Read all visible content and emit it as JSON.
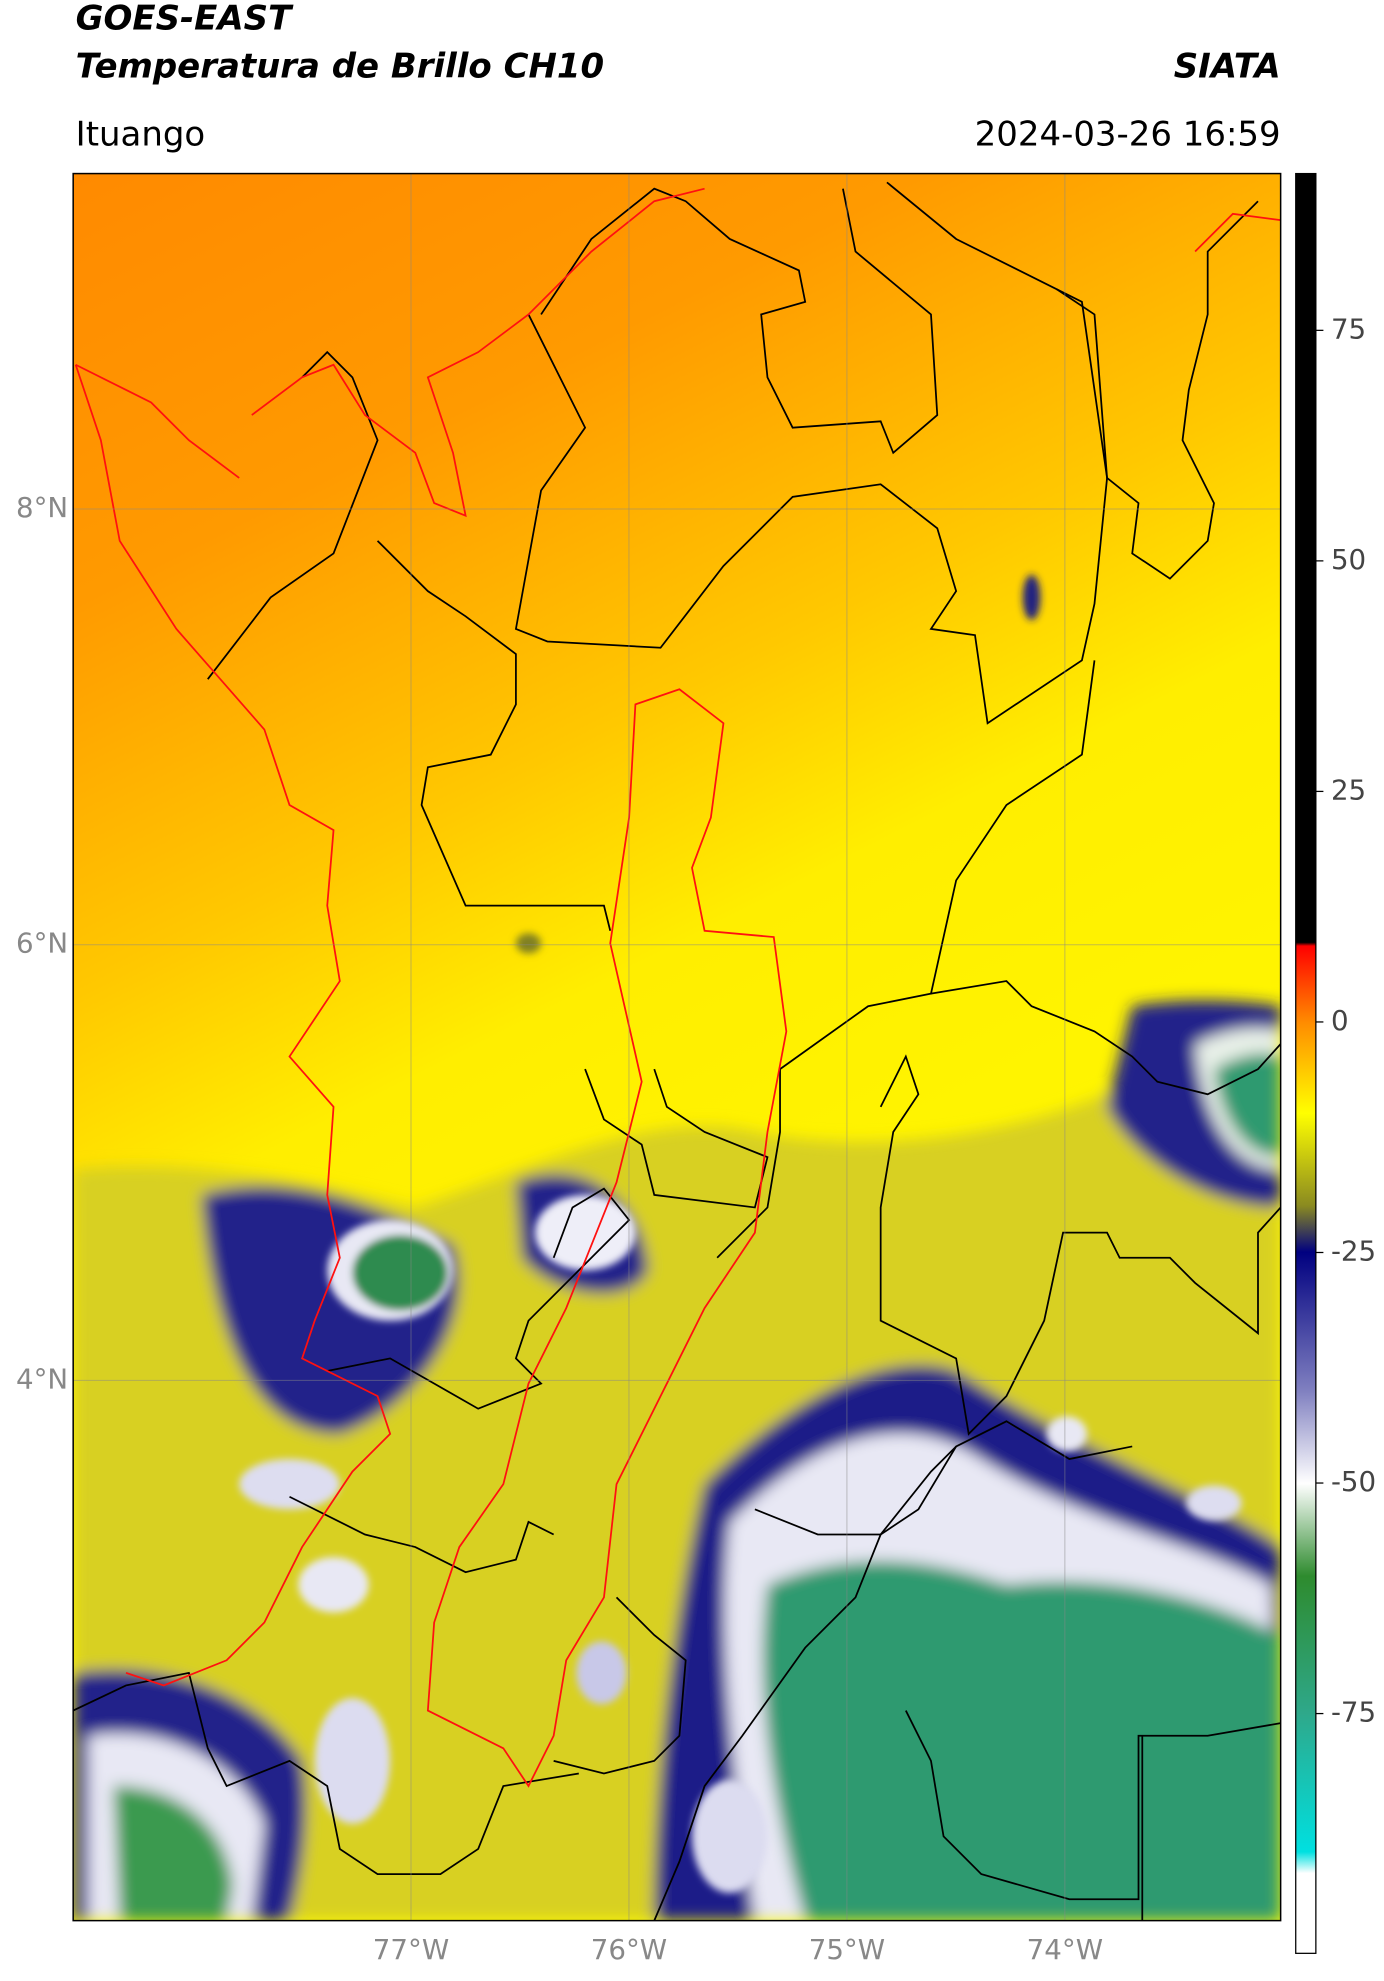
{
  "header": {
    "satellite": "GOES-EAST",
    "product": "Temperatura de Brillo CH10",
    "source": "SIATA",
    "region": "Ituango",
    "datetime": "2024-03-26 16:59"
  },
  "map": {
    "lonlim": [
      -78.55,
      -73.01
    ],
    "latlim": [
      1.52,
      9.54
    ],
    "lonticks": [
      {
        "value": -77,
        "label": "77°W"
      },
      {
        "value": -76,
        "label": "76°W"
      },
      {
        "value": -75,
        "label": "75°W"
      },
      {
        "value": -74,
        "label": "74°W"
      }
    ],
    "latticks": [
      {
        "value": 8,
        "label": "8°N"
      },
      {
        "value": 6,
        "label": "6°N"
      },
      {
        "value": 4,
        "label": "4°N"
      }
    ],
    "grid": true
  },
  "colorbar": {
    "lim": [
      -101,
      92
    ],
    "ticks": [
      75,
      50,
      25,
      0,
      -25,
      -50,
      -75
    ]
  }
}
